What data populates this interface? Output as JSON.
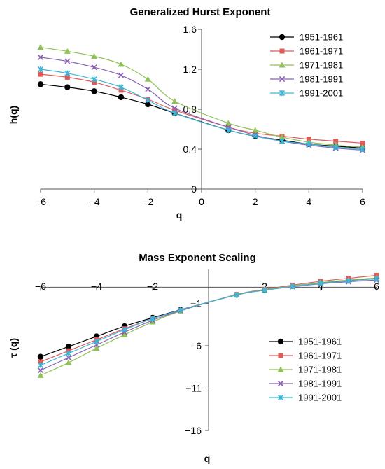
{
  "chart_data": [
    {
      "type": "line",
      "title": "Generalized Hurst Exponent",
      "xlabel": "q",
      "ylabel": "h(q)",
      "xlim": [
        -6,
        6
      ],
      "ylim": [
        0,
        1.6
      ],
      "xticks": [
        -6,
        -4,
        -2,
        0,
        2,
        4,
        6
      ],
      "yticks": [
        0,
        0.4,
        0.8,
        1.2,
        1.6
      ],
      "ytick_labels": [
        "0",
        "0.4",
        "0.8",
        "1.2",
        "1.6"
      ],
      "grid": false,
      "legend": "top-right",
      "x": [
        -6,
        -5,
        -4,
        -3,
        -2,
        -1,
        1,
        2,
        3,
        4,
        5,
        6
      ],
      "series": [
        {
          "name": "1951-1961",
          "color": "#000000",
          "marker": "circle",
          "values": [
            1.05,
            1.02,
            0.98,
            0.92,
            0.85,
            0.76,
            0.59,
            0.53,
            0.49,
            0.45,
            0.43,
            0.41
          ]
        },
        {
          "name": "1961-1971",
          "color": "#e05a5a",
          "marker": "square",
          "values": [
            1.15,
            1.12,
            1.07,
            0.99,
            0.9,
            0.79,
            0.62,
            0.56,
            0.53,
            0.5,
            0.48,
            0.46
          ]
        },
        {
          "name": "1971-1981",
          "color": "#8fc157",
          "marker": "triangle",
          "values": [
            1.42,
            1.38,
            1.33,
            1.25,
            1.1,
            0.88,
            0.66,
            0.59,
            0.52,
            0.47,
            0.44,
            0.42
          ]
        },
        {
          "name": "1981-1991",
          "color": "#8a62b5",
          "marker": "x",
          "values": [
            1.32,
            1.28,
            1.22,
            1.14,
            1.0,
            0.81,
            0.62,
            0.54,
            0.48,
            0.44,
            0.41,
            0.39
          ]
        },
        {
          "name": "1991-2001",
          "color": "#3ab6d8",
          "marker": "star",
          "values": [
            1.2,
            1.16,
            1.1,
            1.02,
            0.89,
            0.76,
            0.59,
            0.53,
            0.48,
            0.45,
            0.42,
            0.4
          ]
        }
      ]
    },
    {
      "type": "line",
      "title": "Mass Exponent Scaling",
      "xlabel": "q",
      "ylabel": "τ (q)",
      "xlim": [
        -6,
        6
      ],
      "ylim": [
        -16,
        3
      ],
      "xticks": [
        -6,
        -4,
        -2,
        2,
        4,
        6
      ],
      "yticks": [
        -16,
        -11,
        -6,
        -1
      ],
      "ytick_labels": [
        "−16",
        "−11",
        "−6",
        "−1"
      ],
      "grid": false,
      "legend": "right",
      "x": [
        -6,
        -5,
        -4,
        -3,
        -2,
        -1,
        1,
        2,
        3,
        4,
        5,
        6
      ],
      "series": [
        {
          "name": "1951-1961",
          "color": "#000000",
          "marker": "circle",
          "values": [
            -7.3,
            -6.1,
            -4.9,
            -3.7,
            -2.7,
            -1.75,
            0.0,
            0.6,
            1.05,
            1.4,
            1.7,
            1.95
          ]
        },
        {
          "name": "1961-1971",
          "color": "#e05a5a",
          "marker": "square",
          "values": [
            -7.9,
            -6.6,
            -5.3,
            -4.0,
            -2.8,
            -1.8,
            0.05,
            0.65,
            1.15,
            1.6,
            1.95,
            2.3
          ]
        },
        {
          "name": "1971-1981",
          "color": "#8fc157",
          "marker": "triangle",
          "values": [
            -9.5,
            -8.0,
            -6.3,
            -4.7,
            -3.2,
            -1.9,
            0.05,
            0.6,
            1.05,
            1.45,
            1.75,
            2.0
          ]
        },
        {
          "name": "1981-1991",
          "color": "#8a62b5",
          "marker": "x",
          "values": [
            -8.9,
            -7.4,
            -5.9,
            -4.4,
            -3.0,
            -1.85,
            0.0,
            0.55,
            0.95,
            1.3,
            1.55,
            1.75
          ]
        },
        {
          "name": "1991-2001",
          "color": "#3ab6d8",
          "marker": "star",
          "values": [
            -8.3,
            -6.9,
            -5.5,
            -4.1,
            -2.8,
            -1.78,
            0.0,
            0.55,
            1.0,
            1.35,
            1.65,
            1.9
          ]
        }
      ]
    }
  ]
}
